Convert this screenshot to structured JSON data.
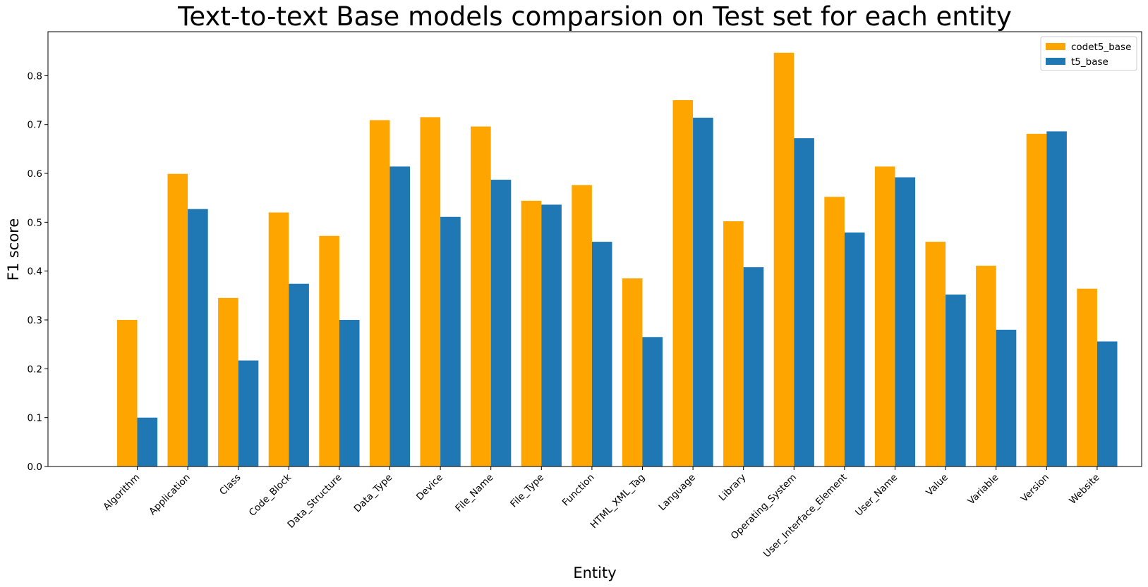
{
  "chart_data": {
    "type": "bar",
    "title": "Text-to-text Base models comparsion on Test set for each entity",
    "xlabel": "Entity",
    "ylabel": "F1 score",
    "ylim": [
      0,
      0.89
    ],
    "yticks": [
      "0.0",
      "0.1",
      "0.2",
      "0.3",
      "0.4",
      "0.5",
      "0.6",
      "0.7",
      "0.8"
    ],
    "grid": false,
    "legend_position": "top-right",
    "categories": [
      "Algorithm",
      "Application",
      "Class",
      "Code_Block",
      "Data_Structure",
      "Data_Type",
      "Device",
      "File_Name",
      "File_Type",
      "Function",
      "HTML_XML_Tag",
      "Language",
      "Library",
      "Operating_System",
      "User_Interface_Element",
      "User_Name",
      "Value",
      "Variable",
      "Version",
      "Website"
    ],
    "series": [
      {
        "name": "codet5_base",
        "color": "#ffa500",
        "values": [
          0.3,
          0.599,
          0.345,
          0.52,
          0.472,
          0.709,
          0.715,
          0.696,
          0.544,
          0.576,
          0.385,
          0.75,
          0.502,
          0.847,
          0.552,
          0.614,
          0.46,
          0.411,
          0.681,
          0.364
        ]
      },
      {
        "name": "t5_base",
        "color": "#1f77b4",
        "values": [
          0.1,
          0.527,
          0.217,
          0.374,
          0.3,
          0.614,
          0.511,
          0.587,
          0.536,
          0.46,
          0.265,
          0.714,
          0.408,
          0.672,
          0.479,
          0.592,
          0.352,
          0.28,
          0.686,
          0.256
        ]
      }
    ]
  }
}
